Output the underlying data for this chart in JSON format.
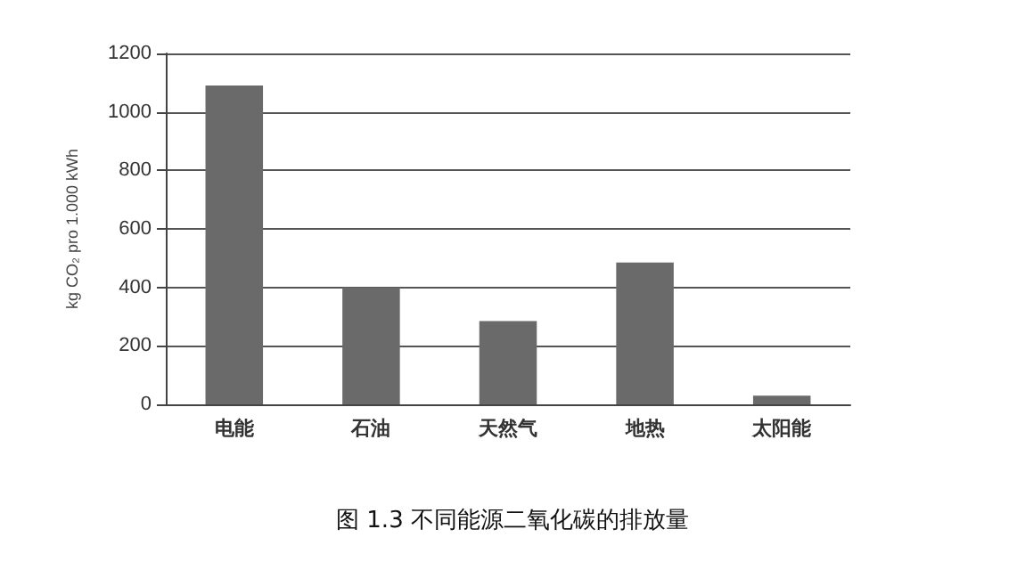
{
  "chart_data": {
    "type": "bar",
    "title": "图 1.3 不同能源二氧化碳的排放量",
    "categories": [
      "电能",
      "石油",
      "天然气",
      "地热",
      "太阳能"
    ],
    "values": [
      1090,
      400,
      285,
      485,
      30
    ],
    "color": "#6a6a6a",
    "ylabel": "kg CO₂ pro 1.000 kWh",
    "ylim": [
      0,
      1200
    ],
    "yticks": [
      0,
      200,
      400,
      600,
      800,
      1000,
      1200
    ],
    "grid": "y"
  }
}
